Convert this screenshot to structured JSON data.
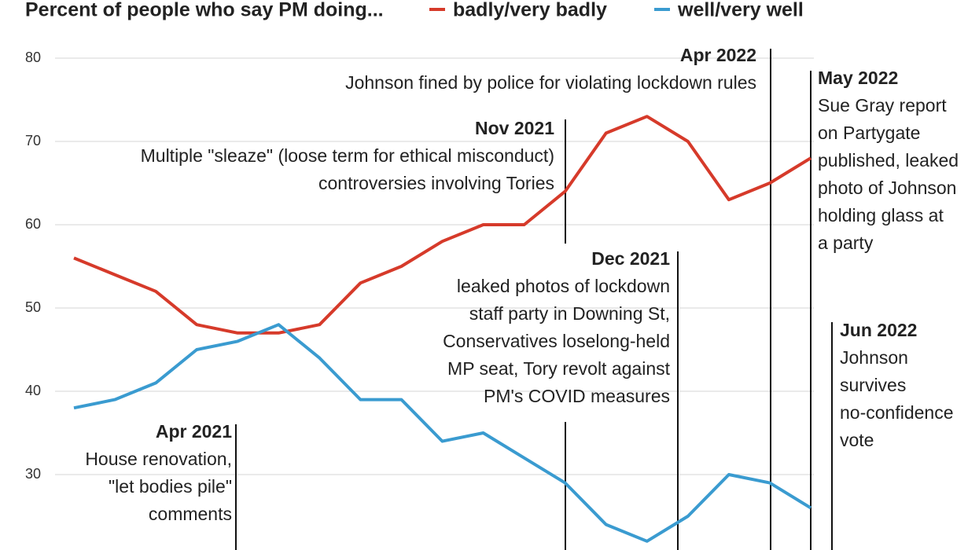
{
  "chart_data": {
    "type": "line",
    "title": "Percent of people who say PM doing...",
    "categories": [
      null,
      null,
      null,
      null,
      null,
      null,
      null,
      null,
      null,
      null,
      null,
      null,
      null,
      null,
      null,
      null,
      null,
      null,
      null
    ],
    "series": [
      {
        "name": "badly/very badly",
        "color": "#d63a2a",
        "values": [
          56,
          54,
          52,
          48,
          47,
          47,
          48,
          53,
          55,
          58,
          60,
          60,
          64,
          71,
          73,
          70,
          63,
          65,
          68
        ]
      },
      {
        "name": "well/very well",
        "color": "#3a9bd0",
        "values": [
          38,
          39,
          41,
          45,
          46,
          48,
          44,
          39,
          39,
          34,
          35,
          32,
          29,
          24,
          22,
          25,
          30,
          29,
          26
        ]
      }
    ],
    "ylim": [
      21,
      81
    ],
    "yticks": [
      30,
      40,
      50,
      60,
      70,
      80
    ],
    "grid": true,
    "annotations": [
      {
        "date": "Apr 2022",
        "lines": [
          "Johnson fined by police for violating lockdown rules"
        ]
      },
      {
        "date": "Nov 2021",
        "lines": [
          "Multiple \"sleaze\" (loose term for ethical misconduct)",
          "controversies involving Tories"
        ]
      },
      {
        "date": "May 2022",
        "lines": [
          "Sue Gray report",
          "on Partygate",
          "published, leaked",
          "photo of Johnson",
          "holding glass at",
          "a party"
        ]
      },
      {
        "date": "Dec 2021",
        "lines": [
          "leaked photos of lockdown",
          "staff party in Downing St,",
          "Conservatives loselong-held",
          "MP seat, Tory revolt against",
          "PM's COVID measures"
        ]
      },
      {
        "date": "Jun 2022",
        "lines": [
          "Johnson",
          "survives",
          "no-confidence",
          "vote"
        ]
      },
      {
        "date": "Apr 2021",
        "lines": [
          "House renovation,",
          "\"let bodies pile\"",
          "comments"
        ]
      }
    ]
  }
}
